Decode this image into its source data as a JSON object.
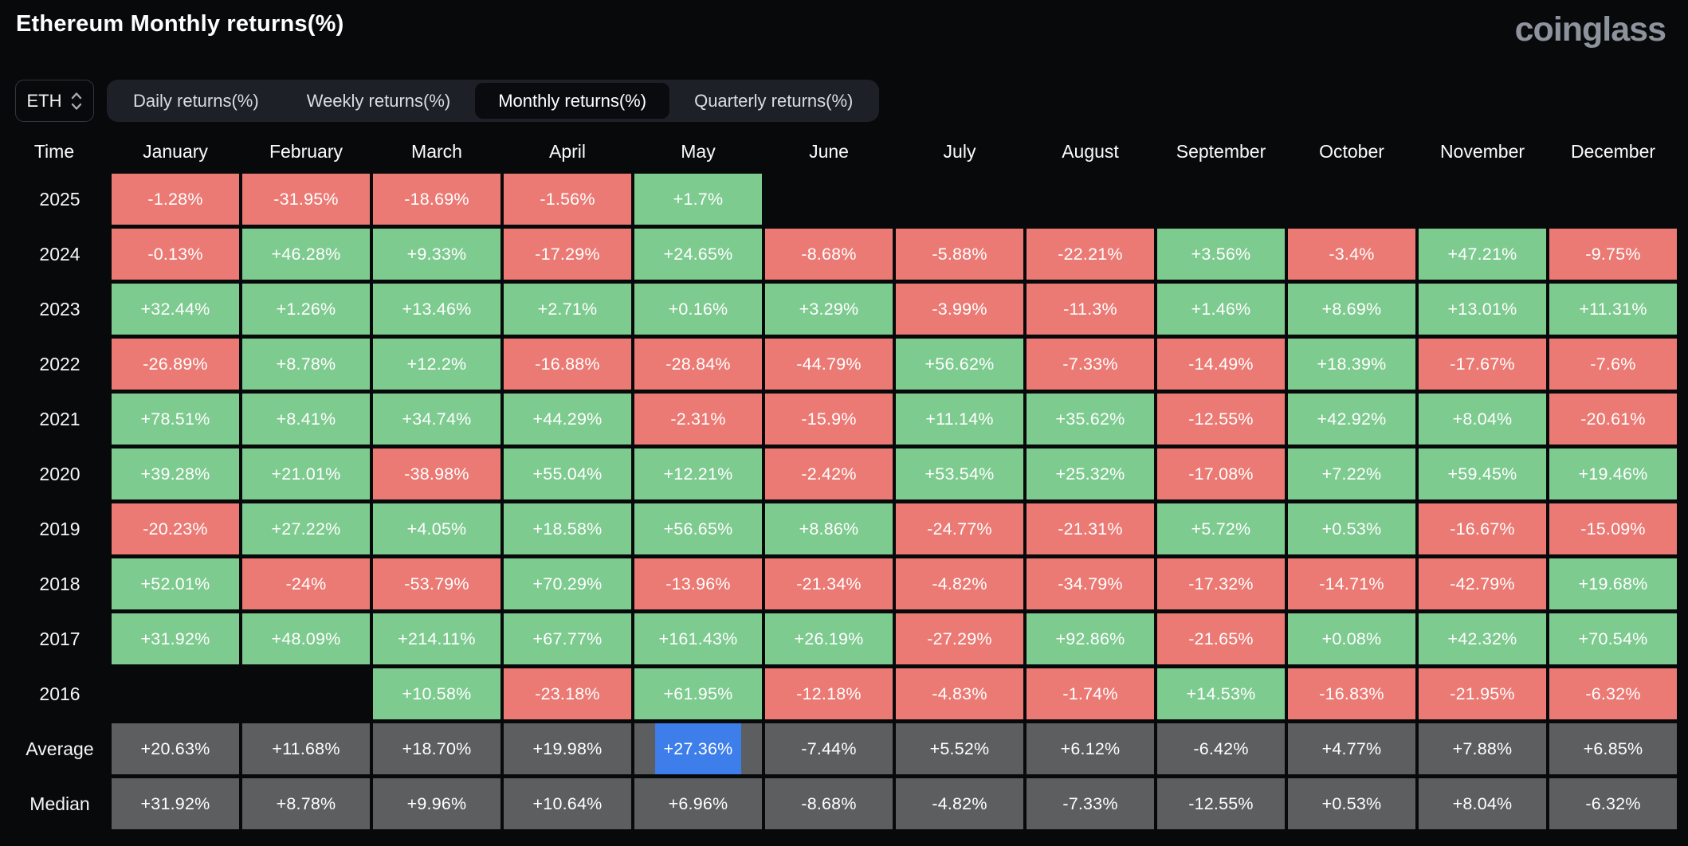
{
  "header": {
    "title": "Ethereum Monthly returns(%)",
    "logo": "coinglass"
  },
  "controls": {
    "symbol": "ETH",
    "symbol_icon": "up-down-chevron-icon",
    "tabs": [
      {
        "label": "Daily returns(%)",
        "active": false
      },
      {
        "label": "Weekly returns(%)",
        "active": false
      },
      {
        "label": "Monthly returns(%)",
        "active": true
      },
      {
        "label": "Quarterly returns(%)",
        "active": false
      }
    ]
  },
  "table": {
    "columns": [
      "Time",
      "January",
      "February",
      "March",
      "April",
      "May",
      "June",
      "July",
      "August",
      "September",
      "October",
      "November",
      "December"
    ],
    "highlight": {
      "row": "Average",
      "col": 4
    },
    "rows": [
      {
        "label": "2025",
        "type": "year",
        "values": [
          "-1.28%",
          "-31.95%",
          "-18.69%",
          "-1.56%",
          "+1.7%",
          "",
          "",
          "",
          "",
          "",
          "",
          ""
        ]
      },
      {
        "label": "2024",
        "type": "year",
        "values": [
          "-0.13%",
          "+46.28%",
          "+9.33%",
          "-17.29%",
          "+24.65%",
          "-8.68%",
          "-5.88%",
          "-22.21%",
          "+3.56%",
          "-3.4%",
          "+47.21%",
          "-9.75%"
        ]
      },
      {
        "label": "2023",
        "type": "year",
        "values": [
          "+32.44%",
          "+1.26%",
          "+13.46%",
          "+2.71%",
          "+0.16%",
          "+3.29%",
          "-3.99%",
          "-11.3%",
          "+1.46%",
          "+8.69%",
          "+13.01%",
          "+11.31%"
        ]
      },
      {
        "label": "2022",
        "type": "year",
        "values": [
          "-26.89%",
          "+8.78%",
          "+12.2%",
          "-16.88%",
          "-28.84%",
          "-44.79%",
          "+56.62%",
          "-7.33%",
          "-14.49%",
          "+18.39%",
          "-17.67%",
          "-7.6%"
        ]
      },
      {
        "label": "2021",
        "type": "year",
        "values": [
          "+78.51%",
          "+8.41%",
          "+34.74%",
          "+44.29%",
          "-2.31%",
          "-15.9%",
          "+11.14%",
          "+35.62%",
          "-12.55%",
          "+42.92%",
          "+8.04%",
          "-20.61%"
        ]
      },
      {
        "label": "2020",
        "type": "year",
        "values": [
          "+39.28%",
          "+21.01%",
          "-38.98%",
          "+55.04%",
          "+12.21%",
          "-2.42%",
          "+53.54%",
          "+25.32%",
          "-17.08%",
          "+7.22%",
          "+59.45%",
          "+19.46%"
        ]
      },
      {
        "label": "2019",
        "type": "year",
        "values": [
          "-20.23%",
          "+27.22%",
          "+4.05%",
          "+18.58%",
          "+56.65%",
          "+8.86%",
          "-24.77%",
          "-21.31%",
          "+5.72%",
          "+0.53%",
          "-16.67%",
          "-15.09%"
        ]
      },
      {
        "label": "2018",
        "type": "year",
        "values": [
          "+52.01%",
          "-24%",
          "-53.79%",
          "+70.29%",
          "-13.96%",
          "-21.34%",
          "-4.82%",
          "-34.79%",
          "-17.32%",
          "-14.71%",
          "-42.79%",
          "+19.68%"
        ]
      },
      {
        "label": "2017",
        "type": "year",
        "values": [
          "+31.92%",
          "+48.09%",
          "+214.11%",
          "+67.77%",
          "+161.43%",
          "+26.19%",
          "-27.29%",
          "+92.86%",
          "-21.65%",
          "+0.08%",
          "+42.32%",
          "+70.54%"
        ]
      },
      {
        "label": "2016",
        "type": "year",
        "values": [
          "",
          "",
          "+10.58%",
          "-23.18%",
          "+61.95%",
          "-12.18%",
          "-4.83%",
          "-1.74%",
          "+14.53%",
          "-16.83%",
          "-21.95%",
          "-6.32%"
        ]
      },
      {
        "label": "Average",
        "type": "summary",
        "values": [
          "+20.63%",
          "+11.68%",
          "+18.70%",
          "+19.98%",
          "+27.36%",
          "-7.44%",
          "+5.52%",
          "+6.12%",
          "-6.42%",
          "+4.77%",
          "+7.88%",
          "+6.85%"
        ]
      },
      {
        "label": "Median",
        "type": "summary",
        "values": [
          "+31.92%",
          "+8.78%",
          "+9.96%",
          "+10.64%",
          "+6.96%",
          "-8.68%",
          "-4.82%",
          "-7.33%",
          "-12.55%",
          "+0.53%",
          "+8.04%",
          "-6.32%"
        ]
      }
    ]
  },
  "colors": {
    "bg": "#08090b",
    "positive": "#7ecb90",
    "negative": "#ec7a74",
    "summary": "#5d5e60",
    "highlight": "#3d7eeb"
  }
}
